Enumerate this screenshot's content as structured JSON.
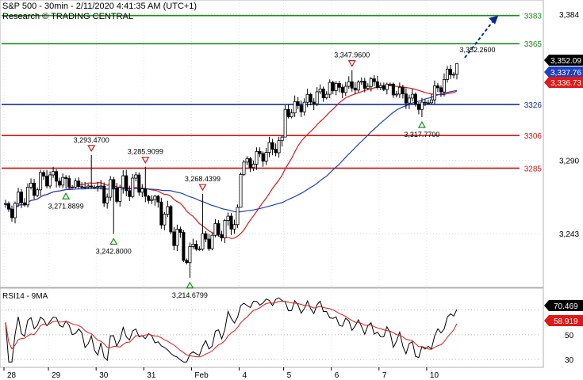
{
  "header": {
    "title": "S&P 500 - 30min - 2/11/2020 4:41:35 AM (UTC+1)",
    "subtitle": "Research © TRADING CENTRAL"
  },
  "chart_data": {
    "type": "candlestick",
    "main": {
      "ylim": [
        3210,
        3391
      ],
      "y_ticks": [
        "3,384",
        "3,290",
        "3,243"
      ],
      "x_ticks": [
        "28",
        "29",
        "30",
        "31",
        "Feb",
        "4",
        "5",
        "6",
        "7",
        "10"
      ],
      "levels": [
        {
          "value": 3383,
          "label": "3383",
          "color": "#1e8c1e"
        },
        {
          "value": 3365,
          "label": "3365",
          "color": "#1e8c1e"
        },
        {
          "value": 3326,
          "label": "3326",
          "color": "#1530a0"
        },
        {
          "value": 3306,
          "label": "3306",
          "color": "#d01818"
        },
        {
          "value": 3285,
          "label": "3285",
          "color": "#d01818"
        }
      ],
      "price_tags": [
        {
          "value": 3352.09,
          "label": "3,352.09",
          "bg": "#000000",
          "fg": "#ffffff"
        },
        {
          "value": 3337.76,
          "label": "3,337.76",
          "bg": "#2040c0",
          "fg": "#ffffff"
        },
        {
          "value": 3336.73,
          "label": "3,336.73",
          "bg": "#e01818",
          "fg": "#ffffff"
        }
      ],
      "annotations": [
        {
          "label": "3,293.4700",
          "kind": "high",
          "bar": 27,
          "value": 3293.47
        },
        {
          "label": "3,271.8899",
          "kind": "low",
          "bar": 19,
          "value": 3271.89
        },
        {
          "label": "3,242.8000",
          "kind": "low",
          "bar": 34,
          "value": 3242.8
        },
        {
          "label": "3,285.9099",
          "kind": "high",
          "bar": 44,
          "value": 3285.91
        },
        {
          "label": "3,214.6799",
          "kind": "low",
          "bar": 58,
          "value": 3214.68
        },
        {
          "label": "3,268.4399",
          "kind": "high",
          "bar": 62,
          "value": 3268.44
        },
        {
          "label": "3,347.9600",
          "kind": "high",
          "bar": 109,
          "value": 3347.96
        },
        {
          "label": "3,317.7700",
          "kind": "low",
          "bar": 131,
          "value": 3317.77
        },
        {
          "label": "3,352.2600",
          "kind": "last",
          "bar": 143,
          "value": 3352.26
        }
      ],
      "forecast_arrow": {
        "from_bar": 143,
        "from_value": 3356,
        "to_bar": 153,
        "to_value": 3383,
        "color": "#0a2a8c"
      },
      "sessions": [
        {
          "label": "28",
          "bars": 14,
          "start": 3256,
          "end": 3280,
          "low": 3248,
          "high": 3284
        },
        {
          "label": "29",
          "bars": 15,
          "start": 3280,
          "end": 3268,
          "low": 3271.89,
          "high": 3293.47
        },
        {
          "label": "30",
          "bars": 15,
          "start": 3268,
          "end": 3276,
          "low": 3242.8,
          "high": 3285.91
        },
        {
          "label": "31",
          "bars": 15,
          "start": 3276,
          "end": 3226,
          "low": 3214.68,
          "high": 3268
        },
        {
          "label": "Feb",
          "bars": 15,
          "start": 3232,
          "end": 3254,
          "low": 3232,
          "high": 3268.44
        },
        {
          "label": "4",
          "bars": 14,
          "start": 3285,
          "end": 3302,
          "low": 3280,
          "high": 3306
        },
        {
          "label": "5",
          "bars": 15,
          "start": 3320,
          "end": 3336,
          "low": 3317,
          "high": 3342
        },
        {
          "label": "6",
          "bars": 15,
          "start": 3336,
          "end": 3340,
          "low": 3330,
          "high": 3347.96
        },
        {
          "label": "7",
          "bars": 15,
          "start": 3340,
          "end": 3324,
          "low": 3317.77,
          "high": 3340
        },
        {
          "label": "10",
          "bars": 10,
          "start": 3328,
          "end": 3352.09,
          "low": 3326,
          "high": 3352.26
        }
      ],
      "moving_averages": [
        {
          "name": "fast",
          "color": "#e01818",
          "period": 20
        },
        {
          "name": "slow",
          "color": "#2040c0",
          "period": 50
        }
      ]
    },
    "rsi": {
      "title": "RSI14 - 9MA",
      "ylim": [
        25,
        85
      ],
      "y_ticks": [
        "50",
        "30"
      ],
      "dotted_levels": [
        70,
        50,
        30
      ],
      "tags": [
        {
          "value": 70.469,
          "label": "70.469",
          "bg": "#000000",
          "fg": "#ffffff"
        },
        {
          "value": 58.919,
          "label": "58.919",
          "bg": "#e01818",
          "fg": "#ffffff"
        }
      ],
      "line_color": "#000000",
      "ma_color": "#e01818"
    }
  }
}
